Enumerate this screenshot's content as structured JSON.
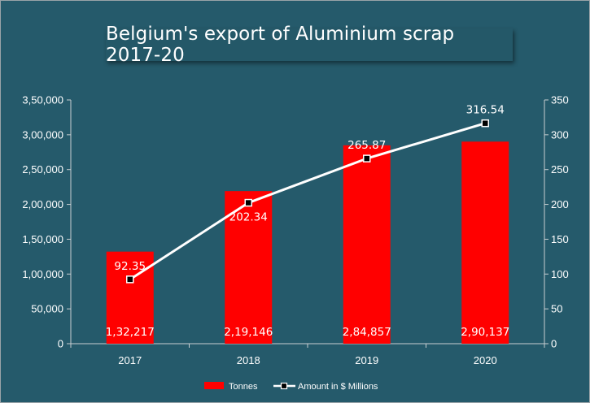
{
  "chart_data": {
    "type": "bar",
    "title": "Belgium's export of Aluminium scrap 2017-20",
    "categories": [
      "2017",
      "2018",
      "2019",
      "2020"
    ],
    "series": [
      {
        "name": "Tonnes",
        "type": "bar",
        "axis": "left",
        "values": [
          132217,
          219146,
          284857,
          290137
        ],
        "labels": [
          "1,32,217",
          "2,19,146",
          "2,84,857",
          "2,90,137"
        ],
        "color": "#ff0000"
      },
      {
        "name": "Amount in $ Millions",
        "type": "line",
        "axis": "right",
        "values": [
          92.35,
          202.34,
          265.87,
          316.54
        ],
        "labels": [
          "92.35",
          "202.34",
          "265.87",
          "316.54"
        ],
        "color": "#ffffff",
        "marker": "square"
      }
    ],
    "y_left": {
      "lim": [
        0,
        350000
      ],
      "ticks": [
        0,
        50000,
        100000,
        150000,
        200000,
        250000,
        300000,
        350000
      ],
      "tick_labels": [
        "0",
        "50,000",
        "1,00,000",
        "1,50,000",
        "2,00,000",
        "2,50,000",
        "3,00,000",
        "3,50,000"
      ]
    },
    "y_right": {
      "lim": [
        0,
        350
      ],
      "ticks": [
        0,
        50,
        100,
        150,
        200,
        250,
        300,
        350
      ],
      "tick_labels": [
        "0",
        "50",
        "100",
        "150",
        "200",
        "250",
        "300",
        "350"
      ]
    },
    "grid": false,
    "legend": "bottom",
    "background_color": "#255a6b"
  }
}
